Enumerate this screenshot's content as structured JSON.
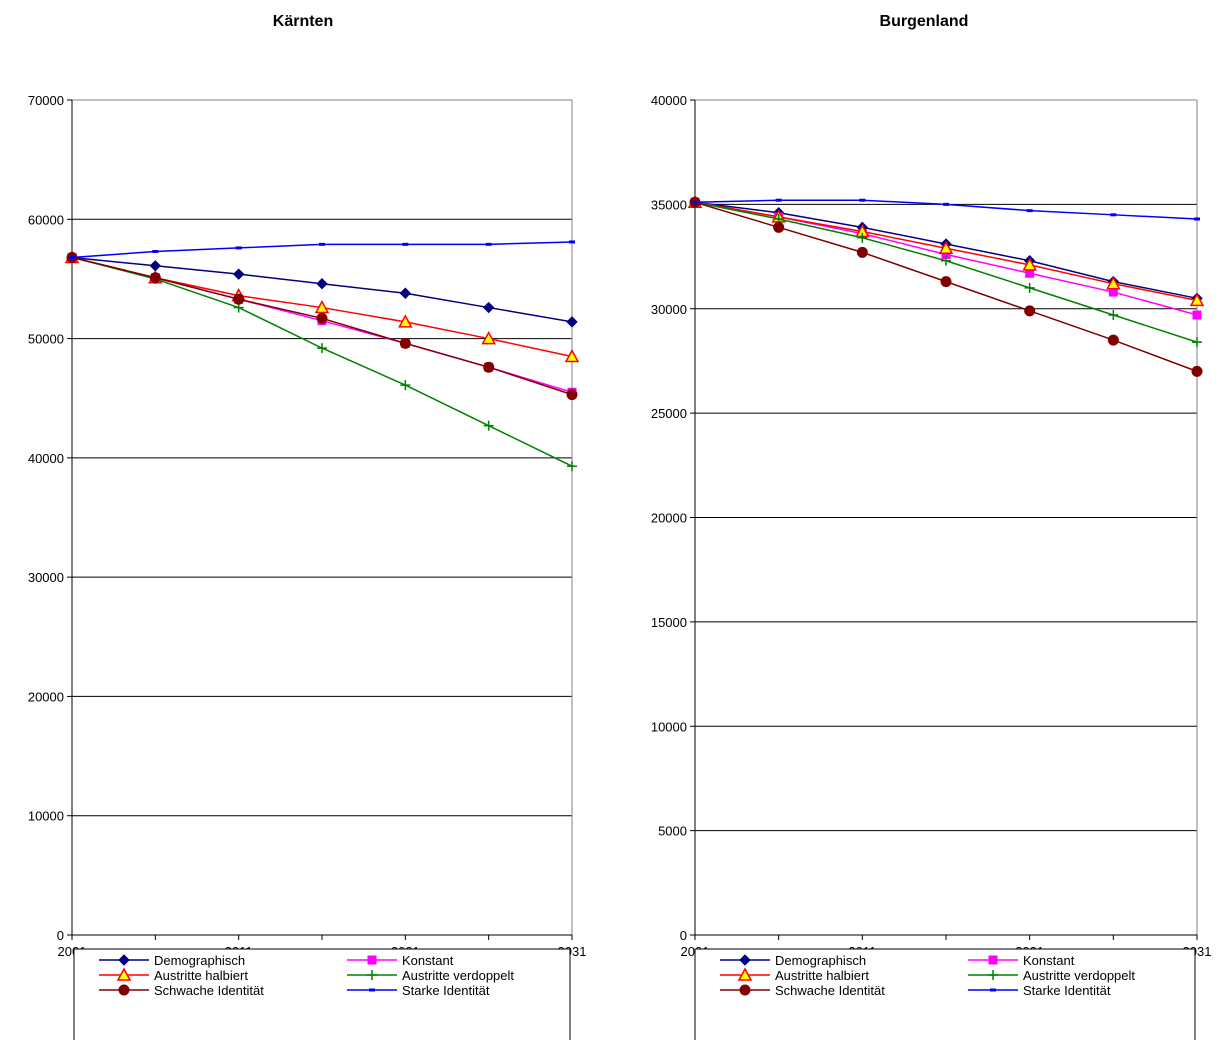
{
  "colors": {
    "Demographisch": "#000080",
    "Konstant": "#FF00FF",
    "Austritte halbiert": "#FF0000",
    "Austritte verdoppelt": "#008000",
    "Schwache Identität": "#800000",
    "Starke Identität": "#0000FF",
    "triangle_fill": "#FFFF00",
    "grid": "#000000",
    "axis": "#808080"
  },
  "chart_data": [
    {
      "type": "line",
      "title": "Kärnten",
      "x": [
        2001,
        2006,
        2011,
        2016,
        2021,
        2026,
        2031
      ],
      "x_tick_labels": [
        "2001",
        "2011",
        "2021",
        "2031"
      ],
      "ylim": [
        0,
        70000
      ],
      "y_ticks": [
        0,
        10000,
        20000,
        30000,
        40000,
        50000,
        60000,
        70000
      ],
      "grid": "horizontal",
      "legend_position": "bottom",
      "series": [
        {
          "name": "Demographisch",
          "marker": "diamond",
          "values": [
            56800,
            56100,
            55400,
            54600,
            53800,
            52600,
            51400
          ]
        },
        {
          "name": "Konstant",
          "marker": "square",
          "values": [
            56800,
            55100,
            53300,
            51500,
            49600,
            47600,
            45500
          ]
        },
        {
          "name": "Austritte halbiert",
          "marker": "triangle",
          "values": [
            56800,
            55100,
            53600,
            52600,
            51400,
            50000,
            48500
          ]
        },
        {
          "name": "Austritte verdoppelt",
          "marker": "plus",
          "values": [
            56800,
            55000,
            52600,
            49200,
            46100,
            42700,
            39300
          ]
        },
        {
          "name": "Schwache Identität",
          "marker": "circle",
          "values": [
            56800,
            55100,
            53300,
            51700,
            49600,
            47600,
            45300
          ]
        },
        {
          "name": "Starke Identität",
          "marker": "dash",
          "values": [
            56800,
            57300,
            57600,
            57900,
            57900,
            57900,
            58100
          ]
        }
      ]
    },
    {
      "type": "line",
      "title": "Burgenland",
      "x": [
        2001,
        2006,
        2011,
        2016,
        2021,
        2026,
        2031
      ],
      "x_tick_labels": [
        "2001",
        "2011",
        "2021",
        "2031"
      ],
      "ylim": [
        0,
        40000
      ],
      "y_ticks": [
        0,
        5000,
        10000,
        15000,
        20000,
        25000,
        30000,
        35000,
        40000
      ],
      "grid": "horizontal",
      "legend_position": "bottom",
      "series": [
        {
          "name": "Demographisch",
          "marker": "diamond",
          "values": [
            35100,
            34600,
            33900,
            33100,
            32300,
            31300,
            30500
          ]
        },
        {
          "name": "Konstant",
          "marker": "square",
          "values": [
            35100,
            34400,
            33600,
            32600,
            31700,
            30800,
            29700
          ]
        },
        {
          "name": "Austritte halbiert",
          "marker": "triangle",
          "values": [
            35100,
            34400,
            33700,
            32900,
            32100,
            31200,
            30400
          ]
        },
        {
          "name": "Austritte verdoppelt",
          "marker": "plus",
          "values": [
            35100,
            34300,
            33400,
            32300,
            31000,
            29700,
            28400
          ]
        },
        {
          "name": "Schwache Identität",
          "marker": "circle",
          "values": [
            35100,
            33900,
            32700,
            31300,
            29900,
            28500,
            27000
          ]
        },
        {
          "name": "Starke Identität",
          "marker": "dash",
          "values": [
            35100,
            35200,
            35200,
            35000,
            34700,
            34500,
            34300
          ]
        }
      ]
    }
  ]
}
